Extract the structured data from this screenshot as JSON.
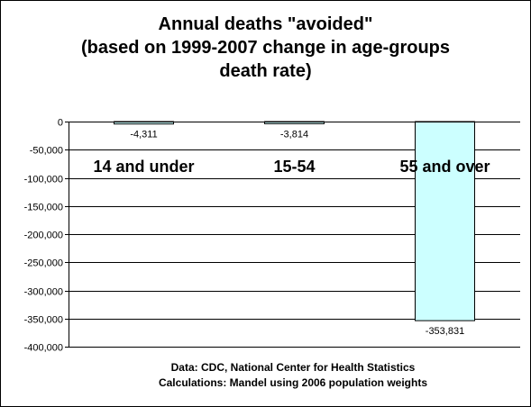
{
  "chart_data": {
    "type": "bar",
    "title": [
      "Annual deaths \"avoided\"",
      "(based on 1999-2007 change in age-groups",
      "death rate)"
    ],
    "xlabel": "",
    "ylabel": "",
    "categories": [
      "14 and under",
      "15-54",
      "55 and over"
    ],
    "values": [
      -4311,
      -3814,
      -353831
    ],
    "data_labels": [
      "-4,311",
      "-3,814",
      "-353,831"
    ],
    "ylim": [
      -400000,
      0
    ],
    "y_ticks": [
      0,
      -50000,
      -100000,
      -150000,
      -200000,
      -250000,
      -300000,
      -350000,
      -400000
    ],
    "y_tick_labels": [
      "0",
      "-50,000",
      "-100,000",
      "-150,000",
      "-200,000",
      "-250,000",
      "-300,000",
      "-350,000",
      "-400,000"
    ],
    "grid": true,
    "legend": "none",
    "colors": {
      "bar_fill": "#ccffff",
      "bar_stroke": "#000000",
      "gridline": "#000000",
      "plot_background": "#ffffff"
    }
  },
  "footer": {
    "line1": "Data: CDC, National Center for Health Statistics",
    "line2": "Calculations: Mandel using 2006 population weights"
  }
}
